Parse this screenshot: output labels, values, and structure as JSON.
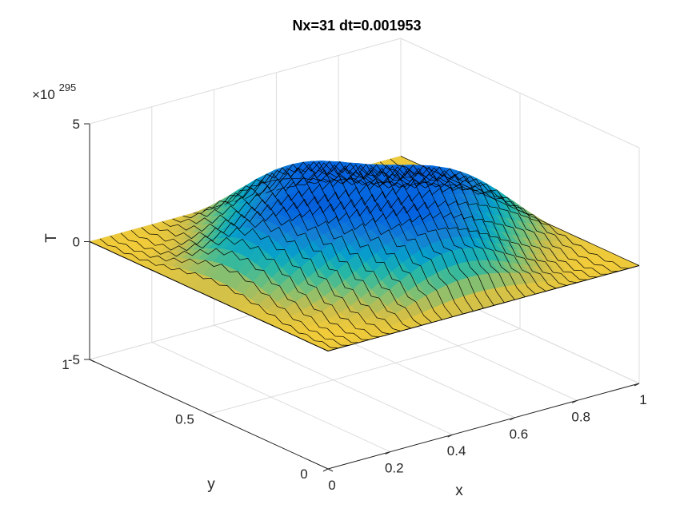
{
  "chart_data": {
    "type": "surface",
    "title": "Nx=31 dt=0.001953",
    "xlabel": "x",
    "ylabel": "y",
    "zlabel": "T",
    "xlim": [
      0,
      1
    ],
    "ylim": [
      0,
      1
    ],
    "zlim": [
      -5,
      5
    ],
    "x_ticks": [
      "0",
      "0.2",
      "0.4",
      "0.6",
      "0.8",
      "1"
    ],
    "y_ticks": [
      "0",
      "0.5",
      "1"
    ],
    "z_ticks": [
      "-5",
      "0",
      "5"
    ],
    "z_exponent_prefix": "×10",
    "z_exponent": "295",
    "z_multiplier": "1e295",
    "grid": true,
    "colormap": "parula",
    "surface_model": {
      "description_of_values": "T(x,y) = A*sin(pi*x)*sin(pi*y) + B*sin(3*pi*x)*sin(3*pi*y), in units of 1e295",
      "A": 3.2,
      "B": -0.55
    },
    "edge_pattern": "sawtooth-spikes"
  },
  "colors": {
    "grid": "#dcdcdc",
    "axis": "#262626",
    "edge": "#000000"
  }
}
